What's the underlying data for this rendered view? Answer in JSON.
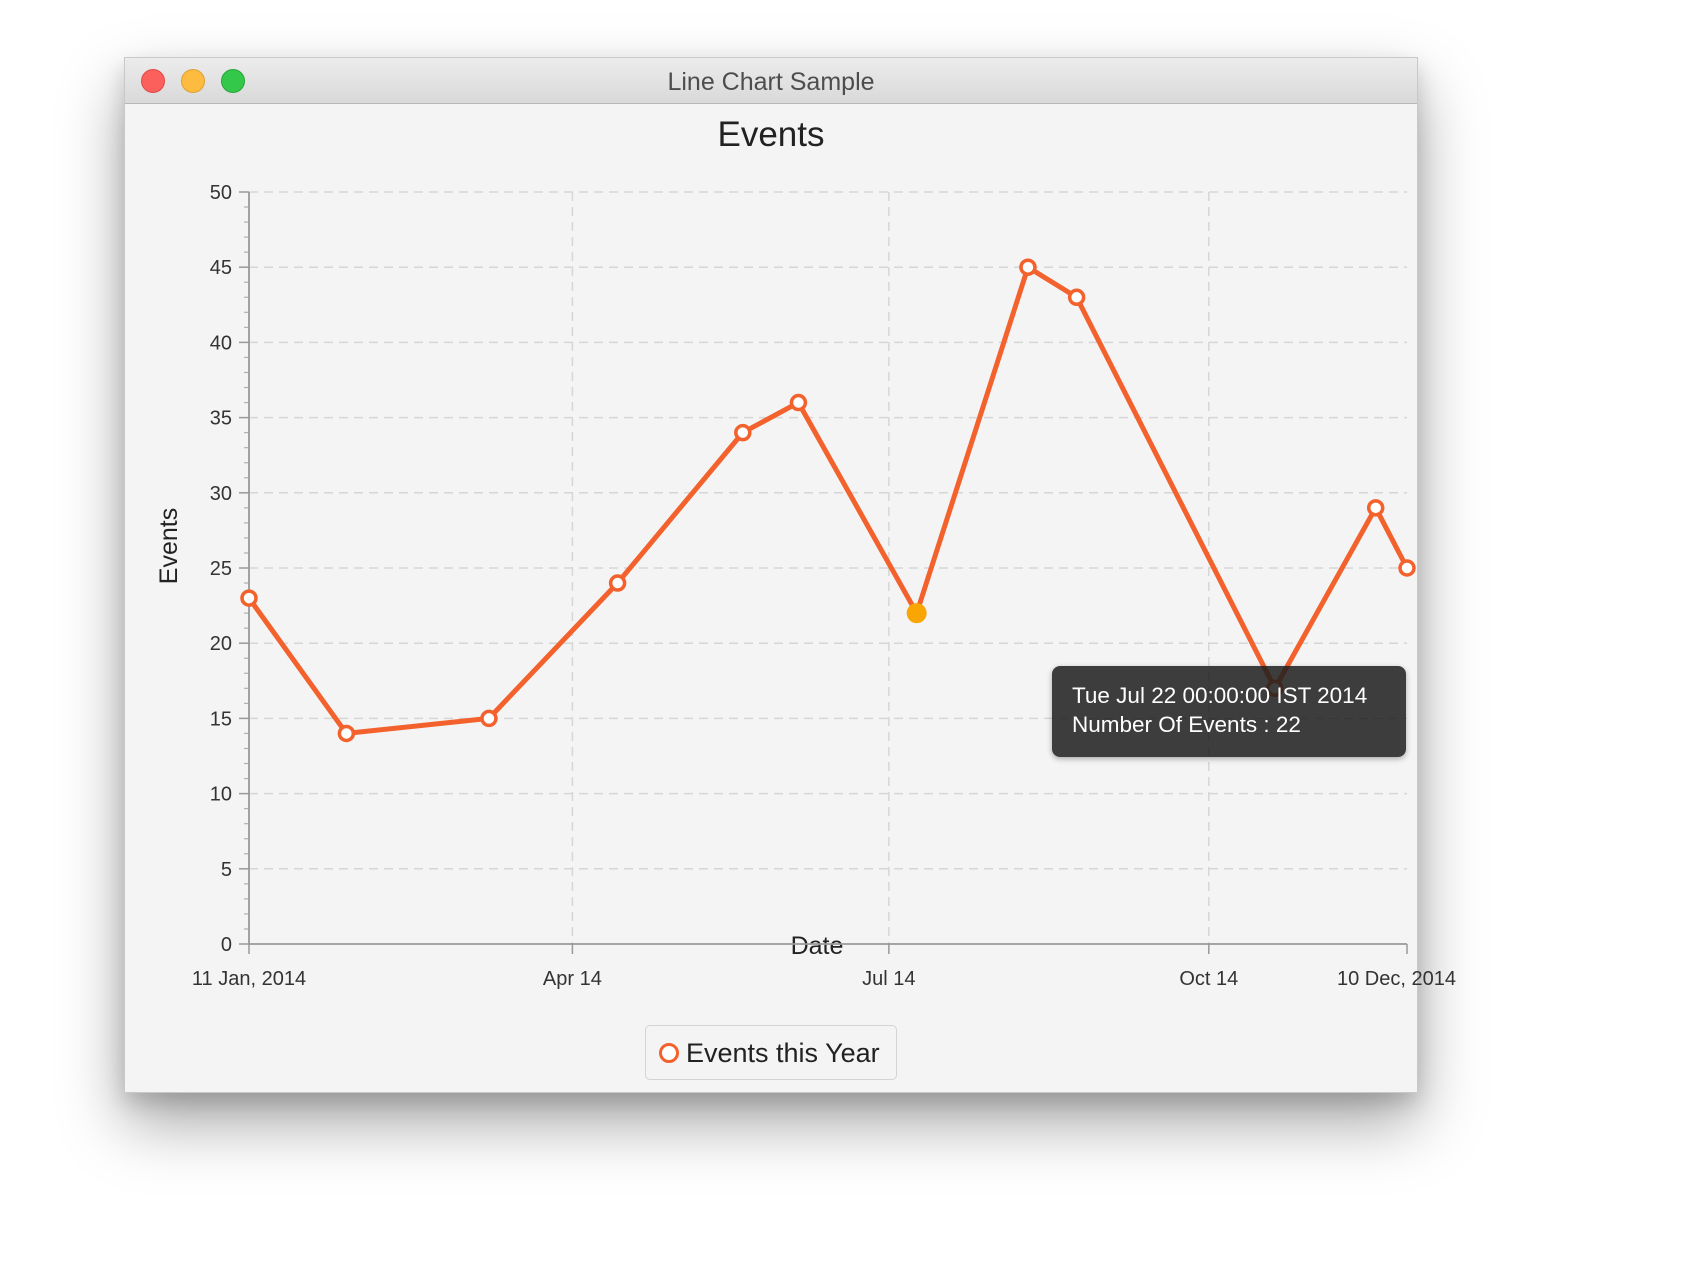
{
  "window": {
    "title": "Line Chart Sample"
  },
  "tooltip": {
    "line1": "Tue Jul 22 00:00:00 IST 2014",
    "line2": "Number Of Events : 22"
  },
  "chart_data": {
    "type": "line",
    "title": "Events",
    "xlabel": "Date",
    "ylabel": "Events",
    "x_axis": "date",
    "xlim": [
      "2014-01-11",
      "2014-12-10"
    ],
    "ylim": [
      0,
      50
    ],
    "y_major_step": 5,
    "y_ticks": [
      "0",
      "5",
      "10",
      "15",
      "20",
      "25",
      "30",
      "35",
      "40",
      "45",
      "50"
    ],
    "x_ticks": [
      {
        "date": "2014-01-11",
        "label": "11 Jan, 2014"
      },
      {
        "date": "2014-04-14",
        "label": "Apr 14"
      },
      {
        "date": "2014-07-14",
        "label": "Jul 14"
      },
      {
        "date": "2014-10-14",
        "label": "Oct 14"
      },
      {
        "date": "2014-12-10",
        "label": "10 Dec, 2014"
      }
    ],
    "grid": true,
    "legend_position": "bottom",
    "series": [
      {
        "name": "Events this Year",
        "color": "#f3622d",
        "points": [
          {
            "x": "2014-01-11",
            "y": 23
          },
          {
            "x": "2014-02-08",
            "y": 14
          },
          {
            "x": "2014-03-21",
            "y": 15
          },
          {
            "x": "2014-04-27",
            "y": 24
          },
          {
            "x": "2014-06-02",
            "y": 34
          },
          {
            "x": "2014-06-18",
            "y": 36
          },
          {
            "x": "2014-07-22",
            "y": 22
          },
          {
            "x": "2014-08-23",
            "y": 45
          },
          {
            "x": "2014-09-06",
            "y": 43
          },
          {
            "x": "2014-11-02",
            "y": 17
          },
          {
            "x": "2014-12-01",
            "y": 29
          },
          {
            "x": "2014-12-10",
            "y": 25
          }
        ]
      }
    ],
    "highlighted_point": {
      "x": "2014-07-22",
      "y": 22,
      "color": "#f9a602"
    }
  }
}
